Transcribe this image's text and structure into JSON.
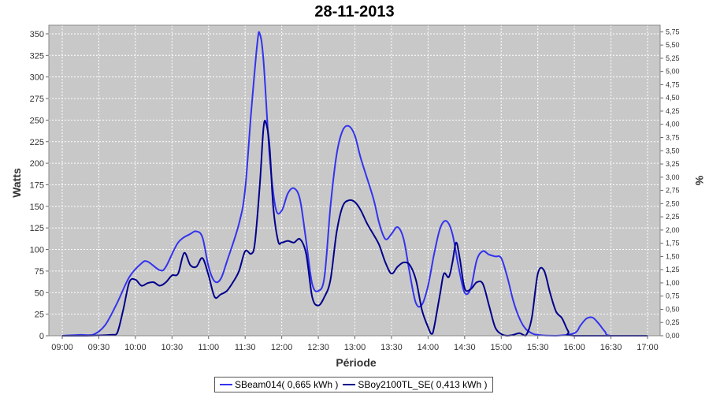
{
  "chart_data": {
    "type": "line",
    "title": "28-11-2013",
    "xlabel": "Période",
    "ylabel": "Watts",
    "y2label": "%",
    "xlim": [
      "09:00",
      "17:00"
    ],
    "ylim": [
      0,
      360
    ],
    "y2lim": [
      0,
      5.875
    ],
    "yticks": [
      0,
      25,
      50,
      75,
      100,
      125,
      150,
      175,
      200,
      225,
      250,
      275,
      300,
      325,
      350
    ],
    "y2ticks": [
      "0,00",
      "0,25",
      "0,50",
      "0,75",
      "1,00",
      "1,25",
      "1,50",
      "1,75",
      "2,00",
      "2,25",
      "2,50",
      "2,75",
      "3,00",
      "3,25",
      "3,50",
      "3,75",
      "4,00",
      "4,25",
      "4,50",
      "4,75",
      "5,00",
      "5,25",
      "5,50",
      "5,75"
    ],
    "xticks": [
      "09:00",
      "09:30",
      "10:00",
      "10:30",
      "11:00",
      "11:30",
      "12:00",
      "12:30",
      "13:00",
      "13:30",
      "14:00",
      "14:30",
      "15:00",
      "15:30",
      "16:00",
      "16:30",
      "17:00"
    ],
    "grid": true,
    "legend_position": "bottom",
    "series": [
      {
        "name": "SBeam014( 0,665 kWh )",
        "color": "#3333ee",
        "points": [
          [
            "09:00",
            0
          ],
          [
            "09:15",
            1
          ],
          [
            "09:25",
            1
          ],
          [
            "09:35",
            12
          ],
          [
            "09:45",
            38
          ],
          [
            "09:55",
            68
          ],
          [
            "10:05",
            84
          ],
          [
            "10:10",
            86
          ],
          [
            "10:20",
            76
          ],
          [
            "10:25",
            80
          ],
          [
            "10:35",
            108
          ],
          [
            "10:45",
            118
          ],
          [
            "10:50",
            121
          ],
          [
            "10:55",
            114
          ],
          [
            "11:00",
            80
          ],
          [
            "11:05",
            63
          ],
          [
            "11:10",
            66
          ],
          [
            "11:15",
            86
          ],
          [
            "11:25",
            130
          ],
          [
            "11:30",
            170
          ],
          [
            "11:35",
            260
          ],
          [
            "11:40",
            340
          ],
          [
            "11:42",
            350
          ],
          [
            "11:45",
            320
          ],
          [
            "11:50",
            210
          ],
          [
            "11:55",
            148
          ],
          [
            "12:00",
            145
          ],
          [
            "12:05",
            165
          ],
          [
            "12:10",
            171
          ],
          [
            "12:15",
            158
          ],
          [
            "12:20",
            110
          ],
          [
            "12:25",
            60
          ],
          [
            "12:30",
            52
          ],
          [
            "12:35",
            68
          ],
          [
            "12:40",
            150
          ],
          [
            "12:45",
            210
          ],
          [
            "12:50",
            238
          ],
          [
            "12:55",
            243
          ],
          [
            "13:00",
            232
          ],
          [
            "13:05",
            205
          ],
          [
            "13:15",
            160
          ],
          [
            "13:20",
            130
          ],
          [
            "13:25",
            112
          ],
          [
            "13:30",
            118
          ],
          [
            "13:35",
            126
          ],
          [
            "13:40",
            112
          ],
          [
            "13:45",
            72
          ],
          [
            "13:50",
            38
          ],
          [
            "13:55",
            36
          ],
          [
            "14:00",
            58
          ],
          [
            "14:05",
            95
          ],
          [
            "14:10",
            125
          ],
          [
            "14:15",
            133
          ],
          [
            "14:20",
            118
          ],
          [
            "14:25",
            80
          ],
          [
            "14:30",
            50
          ],
          [
            "14:35",
            55
          ],
          [
            "14:40",
            88
          ],
          [
            "14:45",
            98
          ],
          [
            "14:50",
            94
          ],
          [
            "14:55",
            92
          ],
          [
            "15:00",
            90
          ],
          [
            "15:05",
            68
          ],
          [
            "15:10",
            40
          ],
          [
            "15:15",
            20
          ],
          [
            "15:20",
            8
          ],
          [
            "15:25",
            3
          ],
          [
            "15:30",
            1
          ],
          [
            "15:45",
            0
          ],
          [
            "16:00",
            3
          ],
          [
            "16:05",
            12
          ],
          [
            "16:10",
            20
          ],
          [
            "16:15",
            21
          ],
          [
            "16:20",
            14
          ],
          [
            "16:25",
            5
          ],
          [
            "16:30",
            0
          ],
          [
            "17:00",
            0
          ]
        ]
      },
      {
        "name": "SBoy2100TL_SE( 0,413 kWh )",
        "color": "#00008b",
        "points": [
          [
            "09:00",
            0
          ],
          [
            "09:20",
            0
          ],
          [
            "09:40",
            1
          ],
          [
            "09:45",
            3
          ],
          [
            "09:50",
            30
          ],
          [
            "09:55",
            62
          ],
          [
            "10:00",
            65
          ],
          [
            "10:05",
            58
          ],
          [
            "10:10",
            61
          ],
          [
            "10:15",
            62
          ],
          [
            "10:20",
            58
          ],
          [
            "10:25",
            62
          ],
          [
            "10:30",
            70
          ],
          [
            "10:35",
            72
          ],
          [
            "10:40",
            96
          ],
          [
            "10:45",
            82
          ],
          [
            "10:50",
            80
          ],
          [
            "10:55",
            90
          ],
          [
            "11:00",
            70
          ],
          [
            "11:05",
            45
          ],
          [
            "11:10",
            48
          ],
          [
            "11:15",
            52
          ],
          [
            "11:20",
            62
          ],
          [
            "11:25",
            75
          ],
          [
            "11:30",
            98
          ],
          [
            "11:35",
            95
          ],
          [
            "11:38",
            108
          ],
          [
            "11:42",
            175
          ],
          [
            "11:45",
            240
          ],
          [
            "11:47",
            247
          ],
          [
            "11:50",
            220
          ],
          [
            "11:53",
            150
          ],
          [
            "11:57",
            110
          ],
          [
            "12:00",
            108
          ],
          [
            "12:05",
            110
          ],
          [
            "12:10",
            108
          ],
          [
            "12:15",
            112
          ],
          [
            "12:20",
            95
          ],
          [
            "12:25",
            45
          ],
          [
            "12:30",
            35
          ],
          [
            "12:35",
            45
          ],
          [
            "12:40",
            65
          ],
          [
            "12:45",
            120
          ],
          [
            "12:50",
            150
          ],
          [
            "12:55",
            157
          ],
          [
            "13:00",
            155
          ],
          [
            "13:05",
            145
          ],
          [
            "13:10",
            130
          ],
          [
            "13:15",
            118
          ],
          [
            "13:20",
            105
          ],
          [
            "13:25",
            85
          ],
          [
            "13:30",
            72
          ],
          [
            "13:35",
            80
          ],
          [
            "13:40",
            85
          ],
          [
            "13:45",
            82
          ],
          [
            "13:50",
            65
          ],
          [
            "13:55",
            30
          ],
          [
            "14:00",
            10
          ],
          [
            "14:03",
            2
          ],
          [
            "14:05",
            10
          ],
          [
            "14:10",
            50
          ],
          [
            "14:13",
            72
          ],
          [
            "14:17",
            68
          ],
          [
            "14:20",
            85
          ],
          [
            "14:23",
            108
          ],
          [
            "14:26",
            90
          ],
          [
            "14:30",
            55
          ],
          [
            "14:35",
            54
          ],
          [
            "14:40",
            62
          ],
          [
            "14:45",
            60
          ],
          [
            "14:50",
            35
          ],
          [
            "14:55",
            10
          ],
          [
            "15:00",
            2
          ],
          [
            "15:05",
            0
          ],
          [
            "15:10",
            1
          ],
          [
            "15:15",
            3
          ],
          [
            "15:20",
            0
          ],
          [
            "15:25",
            20
          ],
          [
            "15:30",
            72
          ],
          [
            "15:35",
            76
          ],
          [
            "15:40",
            50
          ],
          [
            "15:45",
            28
          ],
          [
            "15:50",
            20
          ],
          [
            "15:55",
            5
          ],
          [
            "16:00",
            0
          ],
          [
            "17:00",
            0
          ]
        ]
      }
    ]
  }
}
